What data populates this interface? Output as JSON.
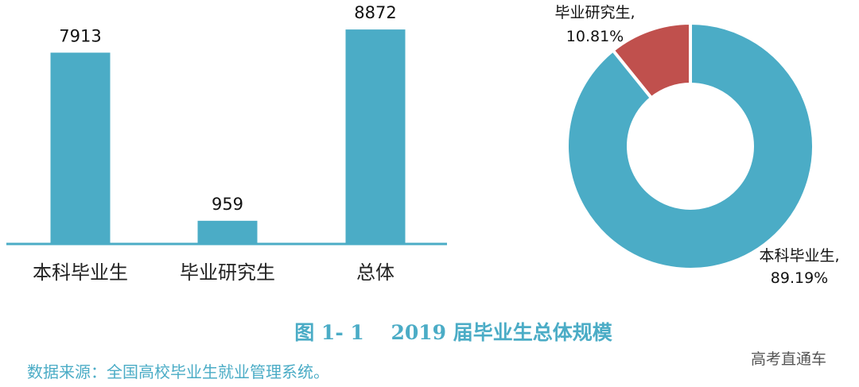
{
  "colors": {
    "primary": "#4bacc6",
    "secondary": "#c0504d",
    "title": "#4bacc6",
    "source": "#4bacc6"
  },
  "chart_data": [
    {
      "type": "bar",
      "categories": [
        "本科毕业生",
        "毕业研究生",
        "总体"
      ],
      "values": [
        7913,
        959,
        8872
      ],
      "ylim": [
        0,
        9500
      ]
    },
    {
      "type": "pie",
      "donut": true,
      "slices": [
        {
          "name": "毕业研究生,",
          "value": "10.81%",
          "percent": 10.81
        },
        {
          "name": "本科毕业生,",
          "value": "89.19%",
          "percent": 89.19
        }
      ]
    }
  ],
  "figure_title": "图 1- 1　 2019 届毕业生总体规模",
  "source_note": "数据来源：全国高校毕业生就业管理系统。",
  "watermark": "高考直通车"
}
